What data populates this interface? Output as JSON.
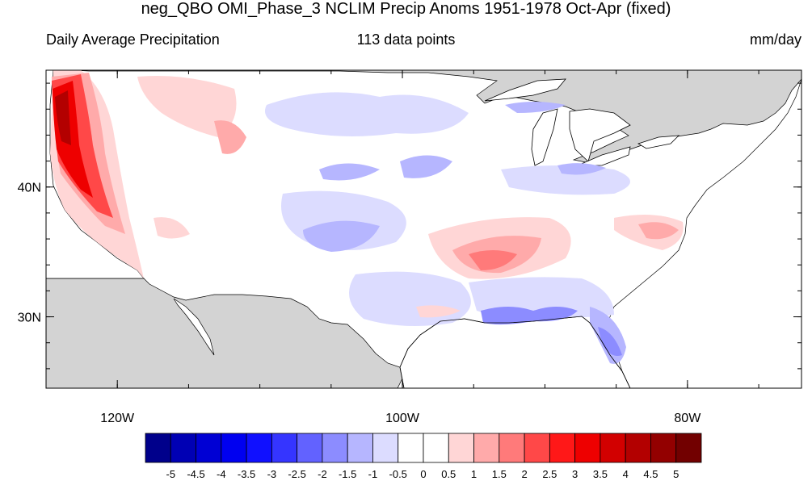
{
  "title": "neg_QBO OMI_Phase_3 NCLIM Precip Anoms 1951-1978 Oct-Apr (fixed)",
  "subtitle_left": "Daily Average Precipitation",
  "subtitle_center": "113 data points",
  "subtitle_right": "mm/day",
  "map": {
    "lon_range": [
      -125,
      -72
    ],
    "lat_range": [
      24.5,
      49
    ],
    "x_ticks": [
      {
        "lon": -120,
        "label": "120W"
      },
      {
        "lon": -100,
        "label": "100W"
      },
      {
        "lon": -80,
        "label": "80W"
      }
    ],
    "y_ticks": [
      {
        "lat": 40,
        "label": "40N"
      },
      {
        "lat": 30,
        "label": "30N"
      }
    ],
    "land_color": "#ffffff",
    "masked_color": "#d3d3d3",
    "coast_color": "#000000"
  },
  "colorbar": {
    "labels": [
      "-5",
      "-4.5",
      "-4",
      "-3.5",
      "-3",
      "-2.5",
      "-2",
      "-1.5",
      "-1",
      "-0.5",
      "0",
      "0.5",
      "1",
      "1.5",
      "2",
      "2.5",
      "3",
      "3.5",
      "4",
      "4.5",
      "5"
    ],
    "colors": [
      "#00008b",
      "#0000b4",
      "#0000d4",
      "#0000f0",
      "#1010ff",
      "#3535ff",
      "#6262ff",
      "#8c8cff",
      "#b6b6ff",
      "#dcdcff",
      "#ffffff",
      "#ffffff",
      "#ffd6d6",
      "#ffaaaa",
      "#ff7a7a",
      "#ff4848",
      "#ff1818",
      "#ee0000",
      "#d20000",
      "#b30000",
      "#930000",
      "#720000"
    ]
  }
}
